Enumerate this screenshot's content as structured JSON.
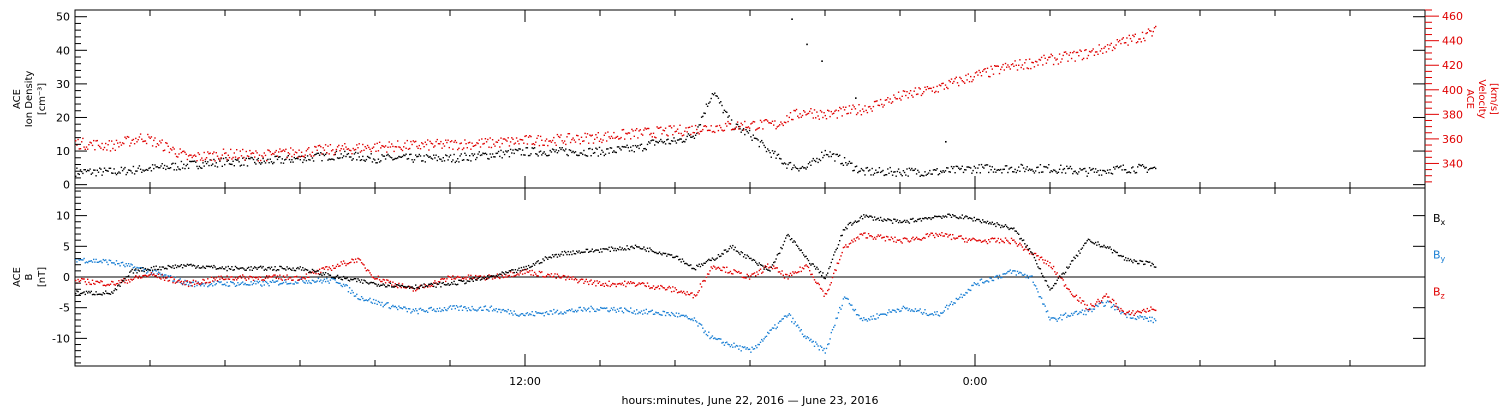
{
  "chart_data": [
    {
      "type": "scatter",
      "panel": "plasma",
      "ylabel": [
        "ACE",
        "Ion Density",
        "[cm⁻³]"
      ],
      "ylabel_right": [
        "ACE",
        "Velocity",
        "[km/s]"
      ],
      "ylim": [
        -1,
        52
      ],
      "ylim_right": [
        320,
        465
      ],
      "yticks": [
        0,
        10,
        20,
        30,
        40,
        50
      ],
      "yticks_right": [
        340,
        360,
        380,
        400,
        420,
        440,
        460
      ],
      "grid": false,
      "series": [
        {
          "axis": "left",
          "color": "#000000",
          "x": [
            0,
            1,
            2,
            3,
            4,
            5,
            6,
            7,
            8,
            9,
            10,
            11,
            12,
            13,
            14,
            15,
            15.5,
            16,
            16.5,
            17,
            17.5,
            18,
            18.5,
            19,
            19.5,
            20,
            21,
            22,
            23,
            24,
            25,
            26,
            27,
            28,
            28.8
          ],
          "y": [
            4,
            4,
            5,
            6,
            7,
            7,
            8,
            9,
            8,
            8,
            8,
            9,
            10,
            10,
            10,
            11,
            13,
            13,
            15,
            28,
            18,
            15,
            10,
            6,
            5,
            10,
            4,
            4,
            4,
            5,
            5,
            5,
            4,
            5,
            5
          ]
        },
        {
          "axis": "right",
          "color": "#e00000",
          "x": [
            0,
            1,
            1.8,
            2.5,
            3,
            4,
            5,
            6,
            7,
            8,
            9,
            10,
            11,
            12,
            13,
            14,
            15,
            16,
            17,
            18,
            18.7,
            19,
            19.5,
            20,
            21,
            22,
            23,
            24,
            25,
            26,
            27,
            28,
            28.8
          ],
          "y": [
            357,
            355,
            362,
            353,
            345,
            348,
            347,
            350,
            352,
            354,
            355,
            356,
            357,
            359,
            360,
            362,
            365,
            367,
            370,
            372,
            372,
            378,
            383,
            380,
            385,
            395,
            402,
            412,
            420,
            425,
            430,
            440,
            448
          ]
        }
      ],
      "outliers": {
        "x": [
          19.1,
          19.5,
          19.9,
          20.8,
          23.2
        ],
        "y": [
          49.5,
          42,
          37,
          26,
          13
        ]
      }
    },
    {
      "type": "scatter",
      "panel": "magnetic-field",
      "ylabel": [
        "ACE",
        "B",
        "[nT]"
      ],
      "ylim": [
        -14.5,
        14.5
      ],
      "yticks": [
        -10,
        -5,
        0,
        5,
        10
      ],
      "zero_line": true,
      "grid": false,
      "legend_placement": "right",
      "legend": [
        {
          "label": "B",
          "sub": "x",
          "color": "#000000"
        },
        {
          "label": "B",
          "sub": "y",
          "color": "#1a7fd4"
        },
        {
          "label": "B",
          "sub": "z",
          "color": "#e00000"
        }
      ],
      "series": [
        {
          "name": "Bx",
          "color": "#000000",
          "x": [
            0,
            1,
            1.5,
            2,
            3,
            4,
            5,
            6,
            7,
            8,
            9,
            10,
            11,
            12,
            12.5,
            13,
            14,
            15,
            16,
            16.5,
            17,
            17.5,
            18,
            18.5,
            19,
            19.5,
            20,
            20.5,
            21,
            22,
            23,
            23.5,
            24,
            25,
            25.5,
            26,
            27,
            27.5,
            28,
            28.8
          ],
          "y": [
            -2.5,
            -2.5,
            1,
            1.5,
            2,
            1.5,
            1.5,
            1.5,
            0,
            -1,
            -1.5,
            -1,
            0,
            1.5,
            3,
            4,
            4.5,
            5,
            3.5,
            1.5,
            3,
            5,
            3,
            1,
            7,
            3,
            0,
            8,
            10,
            9,
            10,
            10,
            9.5,
            8,
            4,
            -2,
            6,
            5,
            3,
            2
          ]
        },
        {
          "name": "By",
          "color": "#1a7fd4",
          "x": [
            0,
            1,
            2,
            3,
            4,
            5,
            6,
            7,
            7.5,
            8,
            9,
            10,
            11,
            12,
            13,
            14,
            15,
            16,
            16.5,
            17,
            17.5,
            18,
            18.5,
            19,
            19.5,
            20,
            20.5,
            21,
            22,
            23,
            24,
            25,
            25.5,
            26,
            26.5,
            27,
            27.5,
            28,
            28.8
          ],
          "y": [
            3,
            2.5,
            1,
            -1,
            -1,
            -1,
            -0.5,
            -0.5,
            -3,
            -4,
            -5.5,
            -5,
            -5,
            -6,
            -5.5,
            -5,
            -5.5,
            -6,
            -7,
            -10,
            -11,
            -12,
            -9,
            -6,
            -10,
            -12,
            -3,
            -7,
            -5,
            -6,
            -1,
            1,
            0,
            -7,
            -6,
            -5.5,
            -4,
            -6,
            -7
          ]
        },
        {
          "name": "Bz",
          "color": "#e00000",
          "x": [
            0,
            1,
            2,
            3,
            4,
            5,
            6,
            7,
            7.5,
            8,
            9,
            10,
            11,
            12,
            13,
            14,
            15,
            16,
            16.5,
            17,
            18,
            18.5,
            19,
            19.5,
            20,
            20.5,
            21,
            22,
            23,
            24,
            25,
            25.5,
            26,
            26.5,
            27,
            27.5,
            28,
            28.8
          ],
          "y": [
            -0.5,
            -1,
            0.5,
            -1,
            0,
            0,
            0,
            2,
            3,
            0,
            -2,
            0,
            0,
            1,
            0,
            -1,
            -1,
            -2,
            -3,
            2,
            0,
            2,
            0,
            2,
            -3,
            5,
            7,
            6,
            7,
            6,
            6,
            4,
            2,
            -2,
            -5,
            -3,
            -6,
            -5
          ]
        }
      ]
    }
  ],
  "x_axis": {
    "label": "hours:minutes, June 22, 2016 — June 23, 2016",
    "range_hours": [
      0,
      36
    ],
    "major_ticks": [
      {
        "x": 12,
        "label": "12:00"
      },
      {
        "x": 24,
        "label": "0:00"
      }
    ],
    "minor_tick_step_hours": 2
  }
}
